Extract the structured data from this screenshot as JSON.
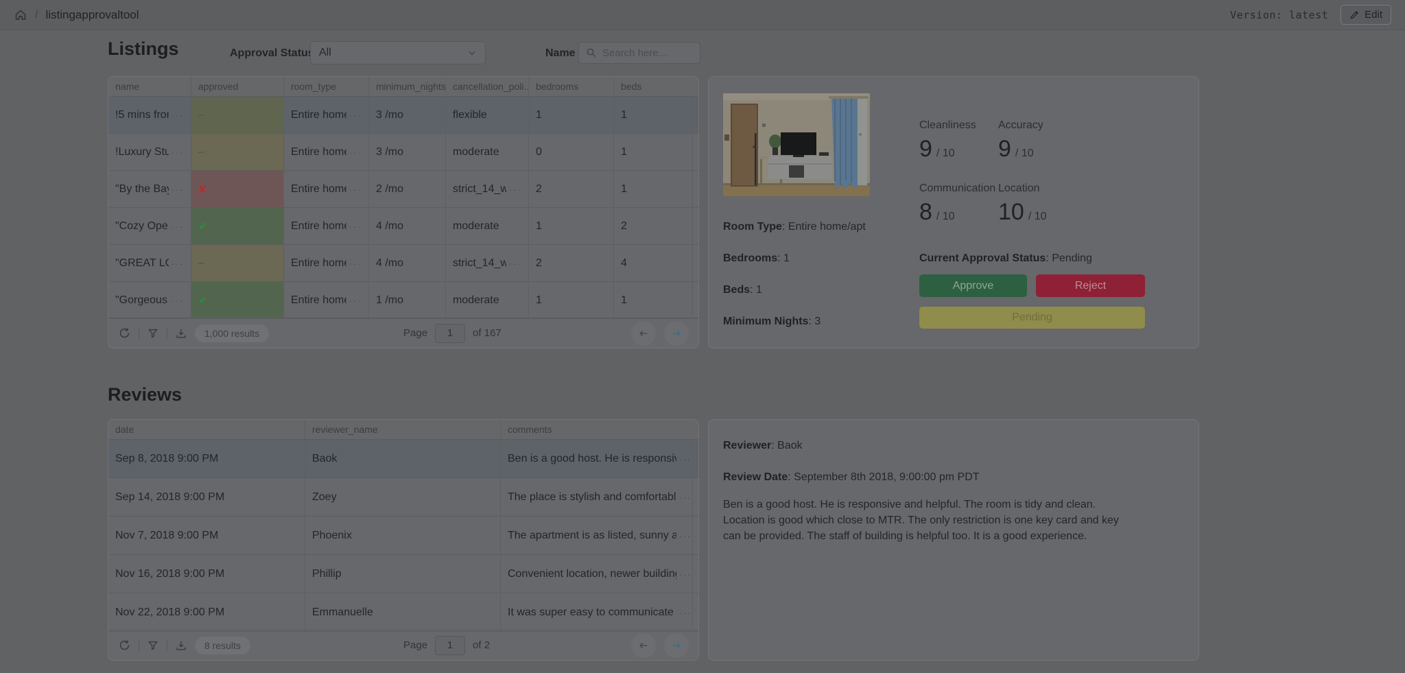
{
  "topbar": {
    "breadcrumb": "listingapprovaltool",
    "version_label": "Version: latest",
    "edit_label": "Edit"
  },
  "colors": {
    "approve": "#2d5f41",
    "reject": "#8e2136",
    "pending": "#8f8c4c",
    "accent_blue": "#2d7296",
    "approved_green": "#52664f",
    "approved_yellow": "#6b6854",
    "approved_red": "#6e5657"
  },
  "listings": {
    "title": "Listings",
    "filter_label": "Approval Status",
    "filter_value": "All",
    "name_label": "Name",
    "search_placeholder": "Search here...",
    "columns": [
      "name",
      "approved",
      "room_type",
      "minimum_nights",
      "cancellation_poli...",
      "bedrooms",
      "beds"
    ],
    "rows": [
      {
        "name": "!5 mins from",
        "approved": {
          "glyph": "–",
          "tone": "sage"
        },
        "room_type": "Entire home",
        "minimum_nights": "3 /mo",
        "cancellation": {
          "text": "flexible",
          "more": false
        },
        "bedrooms": "1",
        "beds": "1",
        "selected": true
      },
      {
        "name": "!Luxury Stud",
        "approved": {
          "glyph": "–",
          "tone": "olive"
        },
        "room_type": "Entire home",
        "minimum_nights": "3 /mo",
        "cancellation": {
          "text": "moderate",
          "more": false
        },
        "bedrooms": "0",
        "beds": "1",
        "selected": false
      },
      {
        "name": "\"By the Bay",
        "approved": {
          "glyph": "✘",
          "tone": "red"
        },
        "room_type": "Entire home",
        "minimum_nights": "2 /mo",
        "cancellation": {
          "text": "strict_14_w",
          "more": true
        },
        "bedrooms": "2",
        "beds": "1",
        "selected": false
      },
      {
        "name": "\"Cozy Oper",
        "approved": {
          "glyph": "✔",
          "tone": "green"
        },
        "room_type": "Entire home",
        "minimum_nights": "4 /mo",
        "cancellation": {
          "text": "moderate",
          "more": false
        },
        "bedrooms": "1",
        "beds": "2",
        "selected": false
      },
      {
        "name": "\"GREAT LOC",
        "approved": {
          "glyph": "–",
          "tone": "olive"
        },
        "room_type": "Entire home",
        "minimum_nights": "4 /mo",
        "cancellation": {
          "text": "strict_14_w",
          "more": true
        },
        "bedrooms": "2",
        "beds": "4",
        "selected": false
      },
      {
        "name": "\"Gorgeous a",
        "approved": {
          "glyph": "✔",
          "tone": "green"
        },
        "room_type": "Entire home",
        "minimum_nights": "1 /mo",
        "cancellation": {
          "text": "moderate",
          "more": false
        },
        "bedrooms": "1",
        "beds": "1",
        "selected": false
      }
    ],
    "footer": {
      "results": "1,000 results",
      "page_label": "Page",
      "page": "1",
      "of": "of 167"
    }
  },
  "detail": {
    "ratings": [
      {
        "label": "Cleanliness",
        "value": "9"
      },
      {
        "label": "Accuracy",
        "value": "9"
      },
      {
        "label": "Communication",
        "value": "8"
      },
      {
        "label": "Location",
        "value": "10"
      }
    ],
    "ratings_denom": "/ 10",
    "fields": [
      {
        "label": "Room Type",
        "value": "Entire home/apt"
      },
      {
        "label": "Bedrooms",
        "value": "1"
      },
      {
        "label": "Beds",
        "value": "1"
      },
      {
        "label": "Minimum Nights",
        "value": "3"
      }
    ],
    "status_label": "Current Approval Status",
    "status_value": "Pending",
    "approve_label": "Approve",
    "reject_label": "Reject",
    "pending_label": "Pending"
  },
  "reviews": {
    "title": "Reviews",
    "columns": [
      "date",
      "reviewer_name",
      "comments"
    ],
    "rows": [
      {
        "date": "Sep 8, 2018 9:00 PM",
        "reviewer": "Baok",
        "comment": "Ben is a good host. He is responsive a",
        "selected": true
      },
      {
        "date": "Sep 14, 2018 9:00 PM",
        "reviewer": "Zoey",
        "comment": "The place is stylish and comfortable.",
        "selected": false
      },
      {
        "date": "Nov 7, 2018 9:00 PM",
        "reviewer": "Phoenix",
        "comment": "The apartment is as listed, sunny and",
        "selected": false
      },
      {
        "date": "Nov 16, 2018 9:00 PM",
        "reviewer": "Phillip",
        "comment": "Convenient location, newer building,",
        "selected": false
      },
      {
        "date": "Nov 22, 2018 9:00 PM",
        "reviewer": "Emmanuelle",
        "comment": "It was super easy to communicate wi",
        "selected": false
      }
    ],
    "footer": {
      "results": "8 results",
      "page_label": "Page",
      "page": "1",
      "of": "of 2"
    }
  },
  "review_detail": {
    "reviewer_label": "Reviewer",
    "reviewer": "Baok",
    "date_label": "Review Date",
    "date": "September 8th 2018, 9:00:00 pm PDT",
    "body": "Ben is a good host. He is responsive and helpful. The room is tidy and clean. Location is good which close to MTR. The only restriction is one key card and key can be provided. The staff of building is helpful too. It is a good experience."
  }
}
